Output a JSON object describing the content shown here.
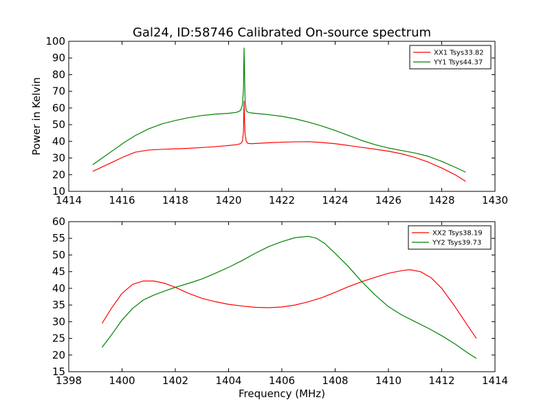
{
  "figure": {
    "title": "Gal24, ID:58746 Calibrated On-source spectrum",
    "xlabel": "Frequency (MHz)",
    "ylabel": "Power in Kelvin"
  },
  "chart_data": [
    {
      "type": "line",
      "title": "Gal24, ID:58746 Calibrated On-source spectrum",
      "xlabel": "",
      "ylabel": "Power in Kelvin",
      "xlim": [
        1414,
        1430
      ],
      "ylim": [
        10,
        100
      ],
      "xticks": [
        "1414",
        "1416",
        "1418",
        "1420",
        "1422",
        "1424",
        "1426",
        "1428",
        "1430"
      ],
      "yticks": [
        "10",
        "20",
        "30",
        "40",
        "50",
        "60",
        "70",
        "80",
        "90",
        "100"
      ],
      "legend_position": "top-right",
      "series": [
        {
          "name": "XX1 Tsys33.82",
          "color": "#ff0000",
          "x": [
            1414.9,
            1415.3,
            1415.7,
            1416.1,
            1416.5,
            1417.0,
            1417.5,
            1418.0,
            1418.5,
            1419.0,
            1419.5,
            1420.0,
            1420.3,
            1420.45,
            1420.52,
            1420.56,
            1420.58,
            1420.6,
            1420.62,
            1420.66,
            1420.72,
            1420.85,
            1421.2,
            1421.6,
            1422.0,
            1422.5,
            1423.0,
            1423.5,
            1424.0,
            1424.5,
            1425.0,
            1425.5,
            1426.0,
            1426.5,
            1427.0,
            1427.5,
            1428.0,
            1428.5,
            1428.9
          ],
          "y": [
            22,
            25,
            28,
            31,
            33.5,
            34.8,
            35.2,
            35.5,
            35.8,
            36.3,
            36.8,
            37.5,
            38,
            38.6,
            40,
            46,
            64,
            52,
            44,
            40.2,
            38.8,
            38.6,
            38.9,
            39.2,
            39.5,
            39.7,
            39.8,
            39.3,
            38.6,
            37.5,
            36.4,
            35.3,
            34.1,
            32.5,
            30.3,
            27.5,
            24,
            20,
            16
          ]
        },
        {
          "name": "YY1 Tsys44.37",
          "color": "#008000",
          "x": [
            1414.9,
            1415.3,
            1415.7,
            1416.1,
            1416.5,
            1417.0,
            1417.5,
            1418.0,
            1418.5,
            1419.0,
            1419.5,
            1420.0,
            1420.3,
            1420.45,
            1420.52,
            1420.56,
            1420.58,
            1420.6,
            1420.62,
            1420.66,
            1420.72,
            1420.85,
            1421.2,
            1421.6,
            1422.0,
            1422.5,
            1423.0,
            1423.5,
            1424.0,
            1424.5,
            1425.0,
            1425.5,
            1426.0,
            1426.5,
            1427.0,
            1427.5,
            1428.0,
            1428.5,
            1428.9
          ],
          "y": [
            26,
            30.5,
            35,
            39.5,
            43.5,
            47.5,
            50.5,
            52.5,
            54.2,
            55.5,
            56.3,
            56.8,
            57.4,
            58.5,
            62,
            72,
            96,
            80,
            64,
            58.5,
            57.5,
            57,
            56.5,
            55.8,
            55,
            53.5,
            51.5,
            49.2,
            46.5,
            43.5,
            40.5,
            38,
            36,
            34.5,
            33,
            31,
            28,
            24.5,
            21.5
          ]
        }
      ]
    },
    {
      "type": "line",
      "title": "",
      "xlabel": "Frequency (MHz)",
      "ylabel": "",
      "xlim": [
        1398,
        1414
      ],
      "ylim": [
        15,
        60
      ],
      "xticks": [
        "1398",
        "1400",
        "1402",
        "1404",
        "1406",
        "1408",
        "1410",
        "1412",
        "1414"
      ],
      "yticks": [
        "15",
        "20",
        "25",
        "30",
        "35",
        "40",
        "45",
        "50",
        "55",
        "60"
      ],
      "legend_position": "top-right",
      "series": [
        {
          "name": "XX2 Tsys38.19",
          "color": "#ff0000",
          "x": [
            1399.25,
            1399.6,
            1400.0,
            1400.4,
            1400.8,
            1401.2,
            1401.6,
            1402.0,
            1402.5,
            1403.0,
            1403.5,
            1404.0,
            1404.5,
            1405.0,
            1405.5,
            1406.0,
            1406.5,
            1407.0,
            1407.5,
            1408.0,
            1408.5,
            1409.0,
            1409.5,
            1410.0,
            1410.5,
            1410.8,
            1411.2,
            1411.6,
            1412.0,
            1412.5,
            1413.0,
            1413.3
          ],
          "y": [
            29.5,
            34,
            38.5,
            41.2,
            42.2,
            42.2,
            41.5,
            40.3,
            38.5,
            37,
            36,
            35.2,
            34.7,
            34.3,
            34.2,
            34.4,
            35,
            36,
            37.2,
            38.8,
            40.5,
            42,
            43.3,
            44.5,
            45.3,
            45.6,
            45,
            43.2,
            40,
            34.5,
            28.5,
            25
          ]
        },
        {
          "name": "YY2 Tsys39.73",
          "color": "#008000",
          "x": [
            1399.25,
            1399.6,
            1400.0,
            1400.4,
            1400.8,
            1401.2,
            1401.6,
            1402.0,
            1402.5,
            1403.0,
            1403.5,
            1404.0,
            1404.5,
            1405.0,
            1405.5,
            1406.0,
            1406.5,
            1407.0,
            1407.3,
            1407.6,
            1408.0,
            1408.5,
            1409.0,
            1409.5,
            1410.0,
            1410.5,
            1411.0,
            1411.5,
            1412.0,
            1412.5,
            1413.0,
            1413.3
          ],
          "y": [
            22.3,
            26,
            30.5,
            34,
            36.5,
            38,
            39.2,
            40.3,
            41.5,
            42.8,
            44.5,
            46.3,
            48.3,
            50.5,
            52.5,
            54,
            55.2,
            55.6,
            55,
            53.5,
            50.5,
            46.5,
            42,
            38,
            34.5,
            32,
            30,
            28,
            25.8,
            23.3,
            20.5,
            19
          ]
        }
      ]
    }
  ]
}
